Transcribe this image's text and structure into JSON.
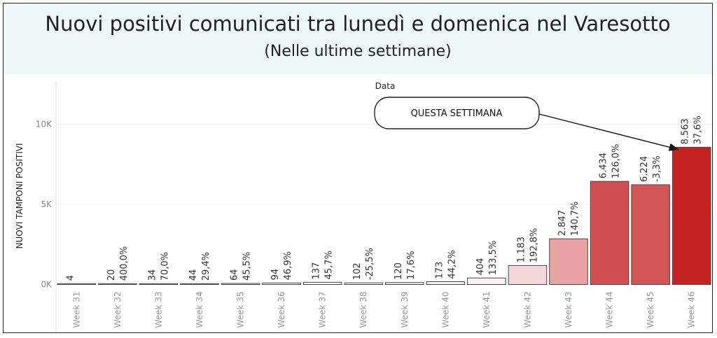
{
  "header": {
    "title": "Nuovi positivi comunicati tra lunedì e domenica nel Varesotto",
    "subtitle": "(Nelle ultime settimane)"
  },
  "annotation": {
    "text": "QUESTA SETTIMANA",
    "target_category": "Week 46"
  },
  "chart_data": {
    "type": "bar",
    "xlabel": "Data",
    "ylabel": "NUOVI TAMPONI POSITIVI",
    "ylim": [
      0,
      12000
    ],
    "yticks": [
      0,
      5000,
      10000
    ],
    "ytick_labels": [
      "0K",
      "5K",
      "10K"
    ],
    "grid": true,
    "categories": [
      "Week 31",
      "Week 32",
      "Week 33",
      "Week 34",
      "Week 35",
      "Week 36",
      "Week 37",
      "Week 38",
      "Week 39",
      "Week 40",
      "Week 41",
      "Week 42",
      "Week 43",
      "Week 44",
      "Week 45",
      "Week 46"
    ],
    "values": [
      4,
      20,
      34,
      44,
      64,
      94,
      137,
      102,
      120,
      173,
      404,
      1183,
      2847,
      6434,
      6224,
      8563
    ],
    "value_labels": [
      "4",
      "20",
      "34",
      "44",
      "64",
      "94",
      "137",
      "102",
      "120",
      "173",
      "404",
      "1.183",
      "2.847",
      "6.434",
      "6.224",
      "8.563"
    ],
    "change_labels": [
      "",
      "400,0%",
      "70,0%",
      "29,4%",
      "45,5%",
      "46,9%",
      "45,7%",
      "-25,5%",
      "17,6%",
      "44,2%",
      "133,5%",
      "192,8%",
      "140,7%",
      "126,0%",
      "-3,3%",
      "37,6%"
    ],
    "colors": {
      "low": "#ffffff",
      "mid": "#e8a3a5",
      "high": "#c42121",
      "bar_border": "#444444",
      "grid": "#ececec"
    }
  }
}
